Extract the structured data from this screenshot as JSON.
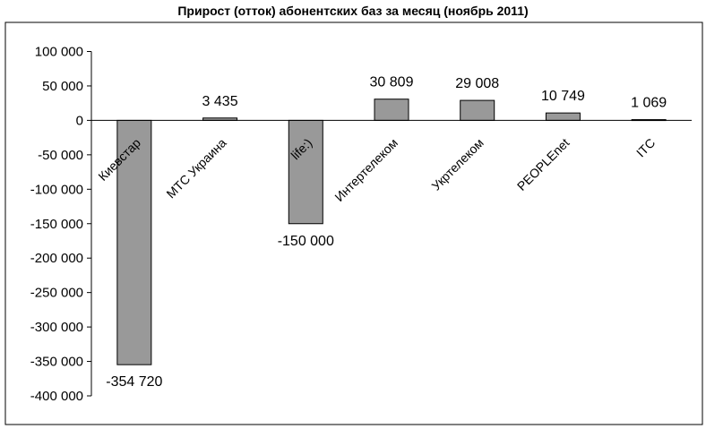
{
  "chart_data": {
    "type": "bar",
    "title": "Прирост (отток) абонентских баз за месяц (ноябрь 2011)",
    "categories": [
      "Киевстар",
      "МТС Украина",
      "life:)",
      "Интертелеком",
      "Укртелеком",
      "PEOPLEnet",
      "ITC"
    ],
    "values": [
      -354720,
      3435,
      -150000,
      30809,
      29008,
      10749,
      1069
    ],
    "data_labels": [
      "-354 720",
      "3 435",
      "-150 000",
      "30 809",
      "29 008",
      "10 749",
      "1 069"
    ],
    "ylim": [
      -400000,
      100000
    ],
    "yticks": [
      100000,
      50000,
      0,
      -50000,
      -100000,
      -150000,
      -200000,
      -250000,
      -300000,
      -350000,
      -400000
    ],
    "ytick_labels": [
      "100 000",
      "50 000",
      "0",
      "-50 000",
      "-100 000",
      "-150 000",
      "-200 000",
      "-250 000",
      "-300 000",
      "-350 000",
      "-400 000"
    ],
    "xlabel": "",
    "ylabel": "",
    "grid": false,
    "legend": "none",
    "colors": {
      "bar_fill": "#999999",
      "bar_stroke": "#000000",
      "axis": "#000000",
      "frame": "#000000"
    }
  }
}
